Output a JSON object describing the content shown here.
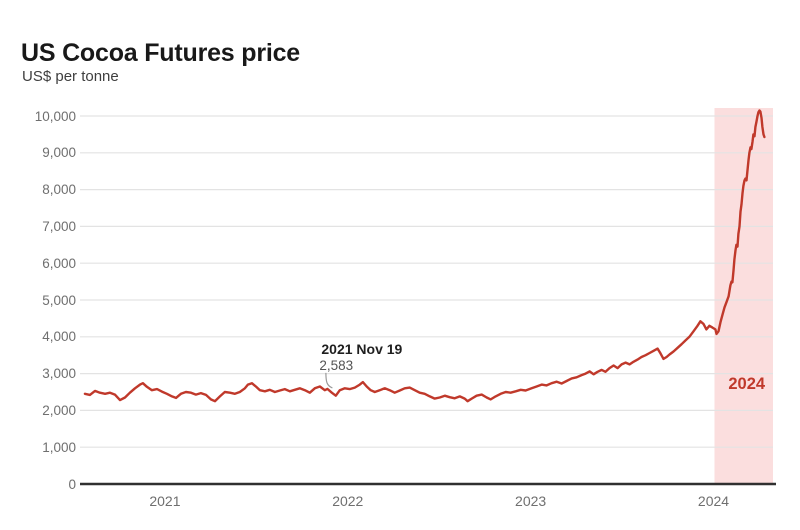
{
  "chart_data": {
    "type": "line",
    "title": "US Cocoa Futures price",
    "subtitle": "US$ per tonne",
    "line_color": "#c0392b",
    "grid_color": "#e3e3e3",
    "axis_color": "#303030",
    "tick_label_color": "#6f6f6f",
    "legend_position": "none",
    "grid": "horizontal-only",
    "x_range": [
      2020.53,
      2024.32
    ],
    "y_range": [
      0,
      10000
    ],
    "y_ticks": [
      {
        "v": 0,
        "label": "0"
      },
      {
        "v": 1000,
        "label": "1,000"
      },
      {
        "v": 2000,
        "label": "2,000"
      },
      {
        "v": 3000,
        "label": "3,000"
      },
      {
        "v": 4000,
        "label": "4,000"
      },
      {
        "v": 5000,
        "label": "5,000"
      },
      {
        "v": 6000,
        "label": "6,000"
      },
      {
        "v": 7000,
        "label": "7,000"
      },
      {
        "v": 8000,
        "label": "8,000"
      },
      {
        "v": 9000,
        "label": "9,000"
      },
      {
        "v": 10000,
        "label": "10,000"
      }
    ],
    "x_ticks": [
      {
        "t": 2021.0,
        "label": "2021"
      },
      {
        "t": 2022.0,
        "label": "2022"
      },
      {
        "t": 2023.0,
        "label": "2023"
      },
      {
        "t": 2024.0,
        "label": "2024"
      }
    ],
    "highlight_region": {
      "label": "2024",
      "t_start": 2024.0,
      "t_end": 2024.32,
      "fill": "#fbdede",
      "label_color": "#c0392b"
    },
    "annotation": {
      "label": "2021 Nov 19",
      "value_label": "2,583",
      "t": 2021.883,
      "v": 2583
    },
    "series": [
      {
        "name": "US cocoa futures price (US$ per tonne)",
        "points": [
          [
            2020.557,
            2450
          ],
          [
            2020.584,
            2420
          ],
          [
            2020.612,
            2530
          ],
          [
            2020.639,
            2480
          ],
          [
            2020.667,
            2450
          ],
          [
            2020.694,
            2480
          ],
          [
            2020.721,
            2430
          ],
          [
            2020.749,
            2280
          ],
          [
            2020.776,
            2350
          ],
          [
            2020.803,
            2480
          ],
          [
            2020.831,
            2600
          ],
          [
            2020.858,
            2700
          ],
          [
            2020.874,
            2740
          ],
          [
            2020.896,
            2640
          ],
          [
            2020.923,
            2550
          ],
          [
            2020.951,
            2580
          ],
          [
            2020.978,
            2510
          ],
          [
            2021.005,
            2450
          ],
          [
            2021.033,
            2380
          ],
          [
            2021.055,
            2340
          ],
          [
            2021.082,
            2450
          ],
          [
            2021.109,
            2500
          ],
          [
            2021.137,
            2480
          ],
          [
            2021.164,
            2430
          ],
          [
            2021.191,
            2470
          ],
          [
            2021.219,
            2420
          ],
          [
            2021.246,
            2300
          ],
          [
            2021.268,
            2250
          ],
          [
            2021.295,
            2380
          ],
          [
            2021.322,
            2500
          ],
          [
            2021.35,
            2480
          ],
          [
            2021.377,
            2450
          ],
          [
            2021.404,
            2500
          ],
          [
            2021.432,
            2600
          ],
          [
            2021.448,
            2700
          ],
          [
            2021.47,
            2740
          ],
          [
            2021.492,
            2650
          ],
          [
            2021.514,
            2550
          ],
          [
            2021.541,
            2520
          ],
          [
            2021.568,
            2560
          ],
          [
            2021.596,
            2500
          ],
          [
            2021.623,
            2540
          ],
          [
            2021.65,
            2580
          ],
          [
            2021.678,
            2520
          ],
          [
            2021.705,
            2560
          ],
          [
            2021.732,
            2600
          ],
          [
            2021.76,
            2550
          ],
          [
            2021.787,
            2480
          ],
          [
            2021.814,
            2600
          ],
          [
            2021.842,
            2650
          ],
          [
            2021.869,
            2550
          ],
          [
            2021.883,
            2583
          ],
          [
            2021.907,
            2480
          ],
          [
            2021.929,
            2400
          ],
          [
            2021.951,
            2550
          ],
          [
            2021.978,
            2600
          ],
          [
            2022.005,
            2580
          ],
          [
            2022.033,
            2620
          ],
          [
            2022.06,
            2700
          ],
          [
            2022.077,
            2770
          ],
          [
            2022.098,
            2650
          ],
          [
            2022.12,
            2550
          ],
          [
            2022.142,
            2500
          ],
          [
            2022.169,
            2550
          ],
          [
            2022.197,
            2600
          ],
          [
            2022.224,
            2550
          ],
          [
            2022.251,
            2480
          ],
          [
            2022.279,
            2540
          ],
          [
            2022.306,
            2600
          ],
          [
            2022.333,
            2620
          ],
          [
            2022.361,
            2550
          ],
          [
            2022.388,
            2480
          ],
          [
            2022.415,
            2450
          ],
          [
            2022.443,
            2380
          ],
          [
            2022.47,
            2320
          ],
          [
            2022.497,
            2350
          ],
          [
            2022.525,
            2400
          ],
          [
            2022.552,
            2360
          ],
          [
            2022.579,
            2330
          ],
          [
            2022.607,
            2380
          ],
          [
            2022.634,
            2320
          ],
          [
            2022.65,
            2250
          ],
          [
            2022.672,
            2320
          ],
          [
            2022.699,
            2400
          ],
          [
            2022.727,
            2430
          ],
          [
            2022.754,
            2350
          ],
          [
            2022.776,
            2300
          ],
          [
            2022.803,
            2380
          ],
          [
            2022.831,
            2450
          ],
          [
            2022.858,
            2500
          ],
          [
            2022.885,
            2480
          ],
          [
            2022.913,
            2520
          ],
          [
            2022.94,
            2560
          ],
          [
            2022.967,
            2540
          ],
          [
            2023.0,
            2600
          ],
          [
            2023.027,
            2650
          ],
          [
            2023.055,
            2700
          ],
          [
            2023.082,
            2680
          ],
          [
            2023.109,
            2740
          ],
          [
            2023.137,
            2780
          ],
          [
            2023.164,
            2730
          ],
          [
            2023.191,
            2800
          ],
          [
            2023.219,
            2870
          ],
          [
            2023.246,
            2900
          ],
          [
            2023.273,
            2960
          ],
          [
            2023.295,
            3000
          ],
          [
            2023.317,
            3060
          ],
          [
            2023.339,
            2980
          ],
          [
            2023.361,
            3050
          ],
          [
            2023.383,
            3100
          ],
          [
            2023.404,
            3050
          ],
          [
            2023.426,
            3150
          ],
          [
            2023.448,
            3220
          ],
          [
            2023.47,
            3150
          ],
          [
            2023.492,
            3250
          ],
          [
            2023.514,
            3300
          ],
          [
            2023.536,
            3250
          ],
          [
            2023.557,
            3320
          ],
          [
            2023.579,
            3380
          ],
          [
            2023.601,
            3450
          ],
          [
            2023.623,
            3500
          ],
          [
            2023.645,
            3560
          ],
          [
            2023.667,
            3620
          ],
          [
            2023.689,
            3680
          ],
          [
            2023.705,
            3550
          ],
          [
            2023.721,
            3400
          ],
          [
            2023.738,
            3450
          ],
          [
            2023.754,
            3520
          ],
          [
            2023.776,
            3600
          ],
          [
            2023.798,
            3700
          ],
          [
            2023.82,
            3800
          ],
          [
            2023.841,
            3900
          ],
          [
            2023.863,
            4000
          ],
          [
            2023.885,
            4150
          ],
          [
            2023.907,
            4300
          ],
          [
            2023.923,
            4420
          ],
          [
            2023.94,
            4350
          ],
          [
            2023.956,
            4200
          ],
          [
            2023.972,
            4300
          ],
          [
            2023.989,
            4250
          ],
          [
            2024.005,
            4200
          ],
          [
            2024.011,
            4080
          ],
          [
            2024.022,
            4150
          ],
          [
            2024.033,
            4400
          ],
          [
            2024.044,
            4600
          ],
          [
            2024.055,
            4800
          ],
          [
            2024.066,
            4950
          ],
          [
            2024.077,
            5100
          ],
          [
            2024.082,
            5250
          ],
          [
            2024.087,
            5400
          ],
          [
            2024.093,
            5500
          ],
          [
            2024.098,
            5480
          ],
          [
            2024.104,
            5800
          ],
          [
            2024.109,
            6100
          ],
          [
            2024.115,
            6350
          ],
          [
            2024.12,
            6500
          ],
          [
            2024.126,
            6450
          ],
          [
            2024.131,
            6800
          ],
          [
            2024.137,
            7000
          ],
          [
            2024.142,
            7400
          ],
          [
            2024.148,
            7600
          ],
          [
            2024.153,
            7900
          ],
          [
            2024.158,
            8100
          ],
          [
            2024.164,
            8250
          ],
          [
            2024.169,
            8300
          ],
          [
            2024.175,
            8250
          ],
          [
            2024.18,
            8500
          ],
          [
            2024.186,
            8800
          ],
          [
            2024.191,
            9000
          ],
          [
            2024.197,
            9150
          ],
          [
            2024.202,
            9100
          ],
          [
            2024.208,
            9300
          ],
          [
            2024.213,
            9500
          ],
          [
            2024.219,
            9450
          ],
          [
            2024.224,
            9700
          ],
          [
            2024.23,
            9850
          ],
          [
            2024.235,
            10000
          ],
          [
            2024.24,
            10100
          ],
          [
            2024.246,
            10150
          ],
          [
            2024.251,
            10120
          ],
          [
            2024.257,
            9950
          ],
          [
            2024.262,
            9700
          ],
          [
            2024.268,
            9500
          ],
          [
            2024.273,
            9430
          ]
        ]
      }
    ]
  }
}
